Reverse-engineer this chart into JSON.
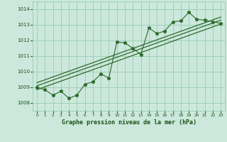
{
  "title": "Graphe pression niveau de la mer (hPa)",
  "x_values": [
    0,
    1,
    2,
    3,
    4,
    5,
    6,
    7,
    8,
    9,
    10,
    11,
    12,
    13,
    14,
    15,
    16,
    17,
    18,
    19,
    20,
    21,
    22,
    23
  ],
  "y_values": [
    1009.0,
    1008.85,
    1008.5,
    1008.75,
    1008.3,
    1008.5,
    1009.2,
    1009.35,
    1009.85,
    1009.6,
    1011.9,
    1011.85,
    1011.5,
    1011.1,
    1012.8,
    1012.45,
    1012.6,
    1013.2,
    1013.25,
    1013.8,
    1013.35,
    1013.3,
    1013.2,
    1013.1
  ],
  "trend_line1": [
    [
      0,
      1008.85
    ],
    [
      23,
      1013.05
    ]
  ],
  "trend_line2": [
    [
      0,
      1009.1
    ],
    [
      23,
      1013.3
    ]
  ],
  "trend_line3": [
    [
      0,
      1009.3
    ],
    [
      23,
      1013.5
    ]
  ],
  "ylim": [
    1007.5,
    1014.5
  ],
  "xlim": [
    -0.5,
    23.5
  ],
  "yticks": [
    1008,
    1009,
    1010,
    1011,
    1012,
    1013,
    1014
  ],
  "xticks": [
    0,
    1,
    2,
    3,
    4,
    5,
    6,
    7,
    8,
    9,
    10,
    11,
    12,
    13,
    14,
    15,
    16,
    17,
    18,
    19,
    20,
    21,
    22,
    23
  ],
  "line_color": "#2d6a2d",
  "trend_color": "#2d6a2d",
  "bg_color": "#cce8dc",
  "grid_color": "#99ccb3",
  "text_color": "#1a5218"
}
